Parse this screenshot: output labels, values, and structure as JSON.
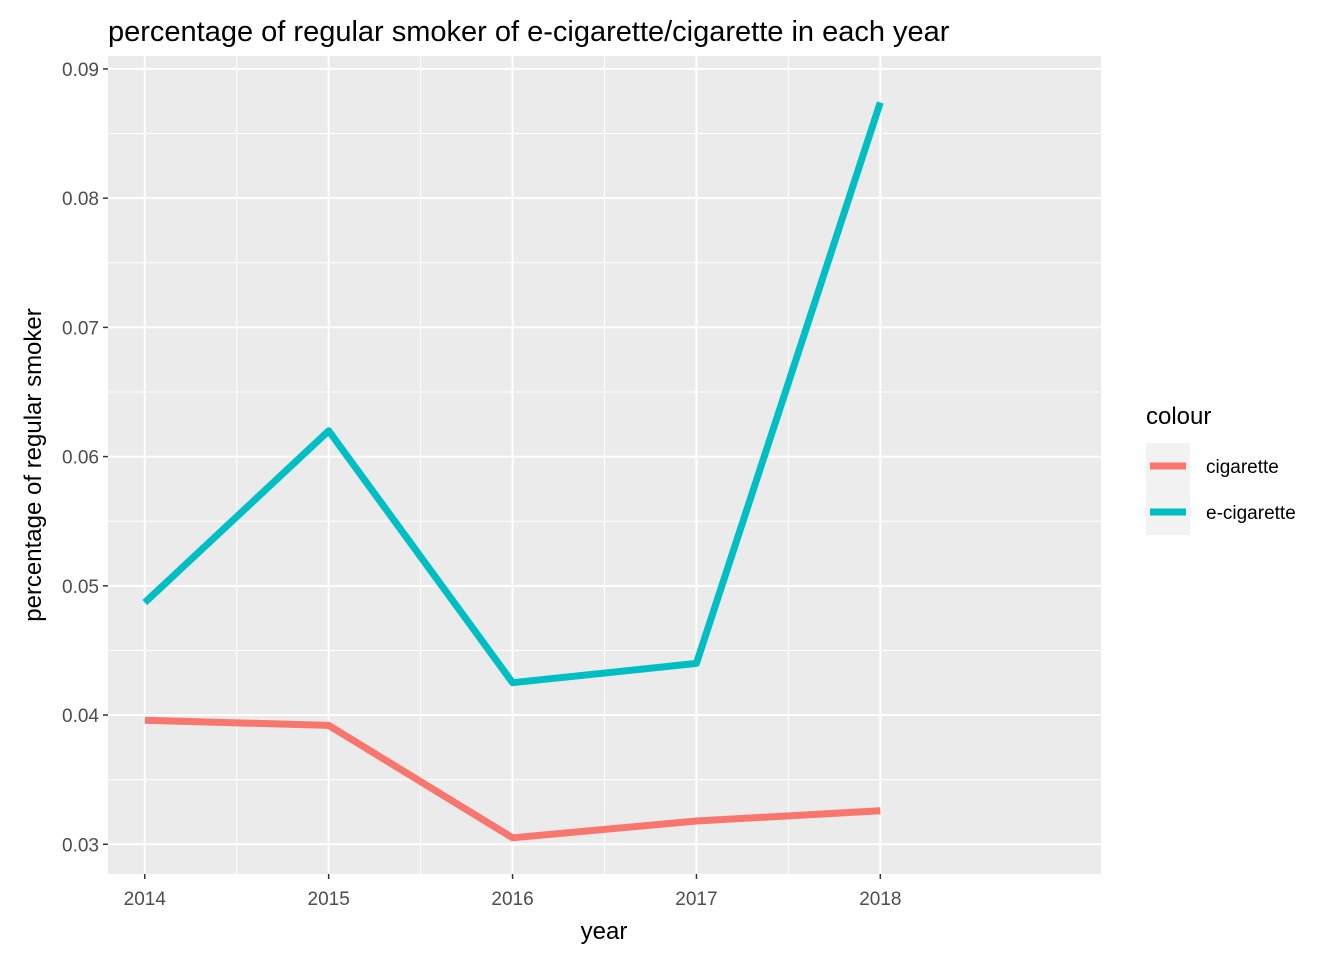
{
  "chart_data": {
    "type": "line",
    "title": "percentage of regular smoker of e-cigarette/cigarette in each year",
    "xlabel": "year",
    "ylabel": "percentage of regular smoker",
    "x": [
      2014,
      2015,
      2016,
      2017,
      2018
    ],
    "x_tick_labels": [
      "2014",
      "2015",
      "2016",
      "2017",
      "2018"
    ],
    "y_ticks": [
      0.03,
      0.04,
      0.05,
      0.06,
      0.07,
      0.08,
      0.09
    ],
    "y_tick_labels": [
      "0.03",
      "0.04",
      "0.05",
      "0.06",
      "0.07",
      "0.08",
      "0.09"
    ],
    "xlim": [
      2013.8,
      2019.2
    ],
    "ylim": [
      0.0277,
      0.091
    ],
    "grid": true,
    "legend": {
      "title": "colour",
      "position": "right"
    },
    "series": [
      {
        "name": "cigarette",
        "color": "#F8766D",
        "values": [
          0.0396,
          0.0392,
          0.0305,
          0.0318,
          0.0326
        ]
      },
      {
        "name": "e-cigarette",
        "color": "#00BFC4",
        "values": [
          0.0487,
          0.062,
          0.0425,
          0.044,
          0.0874
        ]
      }
    ]
  }
}
